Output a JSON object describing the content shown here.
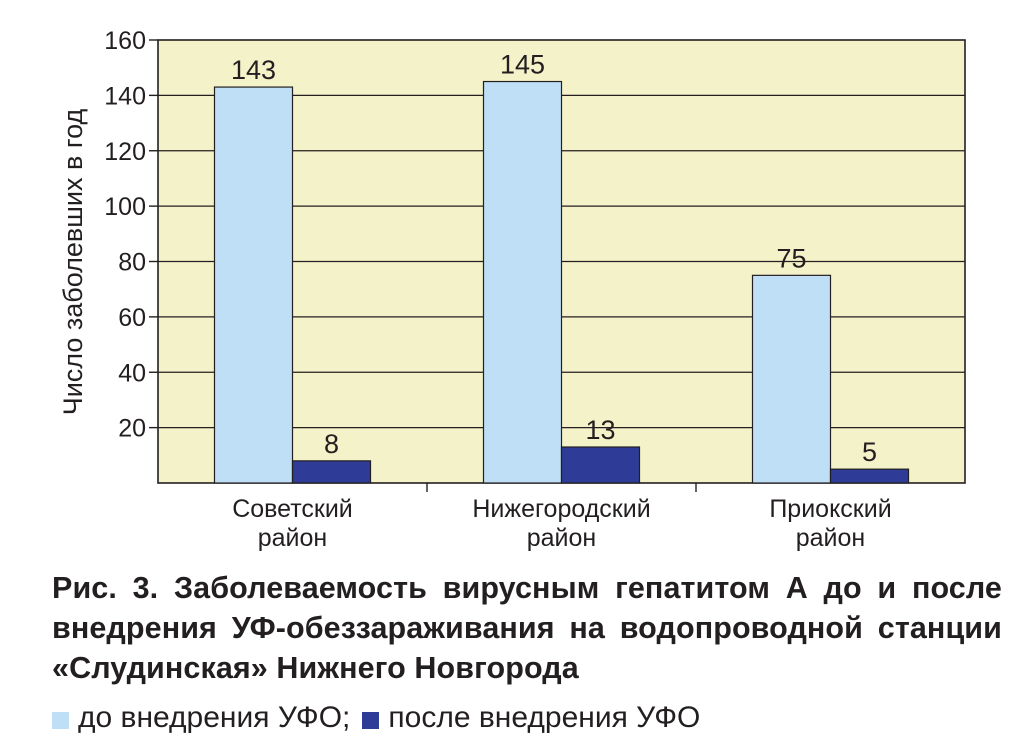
{
  "chart_data": {
    "type": "bar",
    "categories": [
      [
        "Советский",
        "район"
      ],
      [
        "Нижегородский",
        "район"
      ],
      [
        "Приокский",
        "район"
      ]
    ],
    "series": [
      {
        "name": "до внедрения УФО",
        "color": "#bfdff6",
        "values": [
          143,
          145,
          75
        ]
      },
      {
        "name": "после внедрения УФО",
        "color": "#2e3c97",
        "values": [
          8,
          13,
          5
        ]
      }
    ],
    "ylabel": "Число заболевших в год",
    "ylim": [
      0,
      160
    ],
    "yticks": [
      20,
      40,
      60,
      80,
      100,
      120,
      140,
      160
    ],
    "grid": true,
    "background": "#f4f2c8",
    "legend_position": "bottom"
  },
  "caption": "Рис. 3. Заболеваемость вирусным гепатитом А до и после внедрения УФ-обеззараживания на водопроводной станции «Слудинская» Нижнего Новгорода",
  "legend": {
    "separator": ";"
  }
}
